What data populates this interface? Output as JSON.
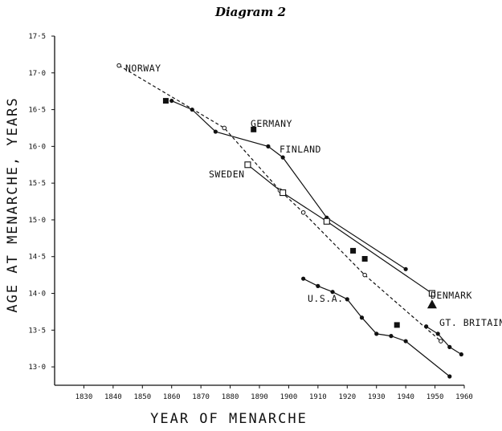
{
  "chart_data": {
    "type": "line",
    "title": "Diagram 2",
    "xlabel": "YEAR OF MENARCHE",
    "ylabel": "AGE AT MENARCHE, YEARS",
    "xlim": [
      1820,
      1960
    ],
    "ylim": [
      12.75,
      17.5
    ],
    "x_ticks": [
      1830,
      1840,
      1850,
      1860,
      1870,
      1880,
      1890,
      1900,
      1910,
      1920,
      1930,
      1940,
      1950,
      1960
    ],
    "x_tick_labels": [
      "1830",
      "1840",
      "1850",
      "1860",
      "1870",
      "1880",
      "1890",
      "1900",
      "1910",
      "1920",
      "1930",
      "1940",
      "1950",
      "1960"
    ],
    "y_ticks": [
      13.0,
      13.5,
      14.0,
      14.5,
      15.0,
      15.5,
      16.0,
      16.5,
      17.0,
      17.5
    ],
    "y_tick_labels": [
      "13·0",
      "13·5",
      "14·0",
      "14·5",
      "15·0",
      "15·5",
      "16·0",
      "16·5",
      "17·0",
      "17·5"
    ],
    "grid": false,
    "series": [
      {
        "name": "NORWAY",
        "marker": "open-circle",
        "line": "dashed",
        "points": [
          [
            1842,
            17.1
          ],
          [
            1878,
            16.25
          ],
          [
            1897,
            15.4
          ],
          [
            1905,
            15.1
          ],
          [
            1926,
            14.25
          ],
          [
            1952,
            13.35
          ]
        ]
      },
      {
        "name": "FINLAND",
        "marker": "dot",
        "line": "solid",
        "points": [
          [
            1860,
            16.62
          ],
          [
            1867,
            16.5
          ],
          [
            1875,
            16.2
          ],
          [
            1893,
            16.0
          ],
          [
            1898,
            15.85
          ],
          [
            1913,
            15.03
          ],
          [
            1940,
            14.33
          ]
        ]
      },
      {
        "name": "SWEDEN",
        "marker": "open-square",
        "line": "solid",
        "points": [
          [
            1886,
            15.75
          ],
          [
            1898,
            15.37
          ],
          [
            1913,
            14.98
          ],
          [
            1949,
            14.0
          ]
        ]
      },
      {
        "name": "GERMANY",
        "marker": "filled-square",
        "line": "none",
        "points": [
          [
            1858,
            16.62
          ],
          [
            1888,
            16.23
          ],
          [
            1922,
            14.58
          ],
          [
            1926,
            14.47
          ],
          [
            1937,
            13.57
          ]
        ]
      },
      {
        "name": "DENMARK",
        "marker": "filled-triangle",
        "line": "none",
        "points": [
          [
            1949,
            13.85
          ]
        ]
      },
      {
        "name": "GT. BRITAIN",
        "marker": "dot",
        "line": "solid",
        "points": [
          [
            1947,
            13.55
          ],
          [
            1951,
            13.45
          ],
          [
            1955,
            13.27
          ],
          [
            1959,
            13.17
          ]
        ]
      },
      {
        "name": "U.S.A.",
        "marker": "dot",
        "line": "solid",
        "points": [
          [
            1905,
            14.2
          ],
          [
            1910,
            14.1
          ],
          [
            1915,
            14.02
          ],
          [
            1920,
            13.92
          ],
          [
            1925,
            13.67
          ],
          [
            1930,
            13.45
          ],
          [
            1935,
            13.42
          ],
          [
            1940,
            13.35
          ],
          [
            1955,
            12.87
          ]
        ]
      }
    ]
  }
}
